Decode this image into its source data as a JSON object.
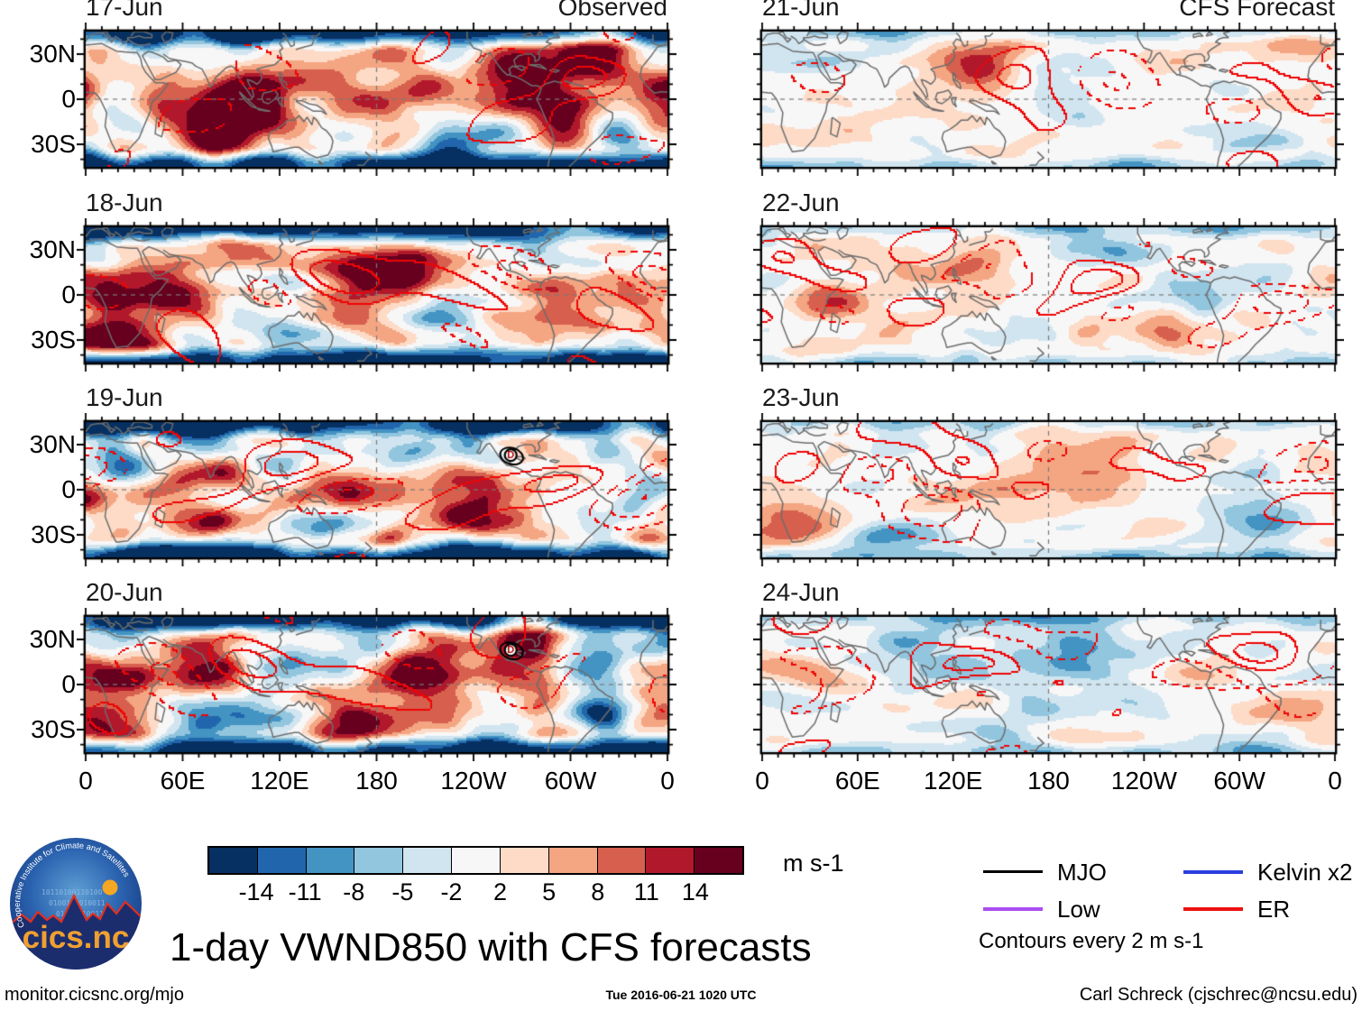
{
  "figure": {
    "panels": [
      {
        "date": "17-Jun",
        "corner_label": "Observed",
        "kind": "observed",
        "column": "left",
        "row": 0,
        "marker": ""
      },
      {
        "date": "18-Jun",
        "corner_label": "",
        "kind": "observed",
        "column": "left",
        "row": 1,
        "marker": ""
      },
      {
        "date": "19-Jun",
        "corner_label": "",
        "kind": "observed",
        "column": "left",
        "row": 2,
        "marker": "D"
      },
      {
        "date": "20-Jun",
        "corner_label": "",
        "kind": "observed",
        "column": "left",
        "row": 3,
        "marker": "D"
      },
      {
        "date": "21-Jun",
        "corner_label": "CFS Forecast",
        "kind": "forecast",
        "column": "right",
        "row": 0,
        "marker": ""
      },
      {
        "date": "22-Jun",
        "corner_label": "",
        "kind": "forecast",
        "column": "right",
        "row": 1,
        "marker": ""
      },
      {
        "date": "23-Jun",
        "corner_label": "",
        "kind": "forecast",
        "column": "right",
        "row": 2,
        "marker": ""
      },
      {
        "date": "24-Jun",
        "corner_label": "",
        "kind": "forecast",
        "column": "right",
        "row": 3,
        "marker": ""
      }
    ]
  },
  "axes": {
    "lat_ticks": [
      "30N",
      "0",
      "30S"
    ],
    "lon_ticks": [
      "0",
      "60E",
      "120E",
      "180",
      "120W",
      "60W",
      "0"
    ]
  },
  "colorbar": {
    "levels": [
      "-14",
      "-11",
      "-8",
      "-5",
      "-2",
      "2",
      "5",
      "8",
      "11",
      "14"
    ],
    "unit": "m s-1",
    "colors": [
      "#053061",
      "#2166ac",
      "#4393c3",
      "#92c5de",
      "#d1e5f0",
      "#f7f7f7",
      "#fddbc7",
      "#f4a582",
      "#d6604d",
      "#b2182b",
      "#67001f"
    ]
  },
  "legend": {
    "items": [
      {
        "label": "MJO",
        "color": "#000000",
        "col": 0,
        "row": 0,
        "thickness": 3
      },
      {
        "label": "Kelvin x2",
        "color": "#2b3fe0",
        "col": 1,
        "row": 0,
        "thickness": 4
      },
      {
        "label": "Low",
        "color": "#a94df0",
        "col": 0,
        "row": 1,
        "thickness": 4
      },
      {
        "label": "ER",
        "color": "#ee1111",
        "col": 1,
        "row": 1,
        "thickness": 4
      }
    ],
    "note": "Contours every 2 m s-1"
  },
  "footer": {
    "title": "1-day VWND850 with CFS forecasts",
    "url": "monitor.cicsnc.org/mjo",
    "timestamp": "Tue 2016-06-21 1020 UTC",
    "credit": "Carl Schreck (cjschrec@ncsu.edu)"
  },
  "logo": {
    "name": "cics.nc",
    "ring_text": "Cooperative Institute for Climate and Satellites"
  },
  "chart_data": {
    "type": "heatmap",
    "title": "1-day VWND850 with CFS forecasts",
    "subtitle_left_column": "Observed",
    "subtitle_right_column": "CFS Forecast",
    "panels": [
      {
        "date": "17-Jun",
        "source": "Observed"
      },
      {
        "date": "18-Jun",
        "source": "Observed"
      },
      {
        "date": "19-Jun",
        "source": "Observed",
        "marker": "D near 97W,23N"
      },
      {
        "date": "20-Jun",
        "source": "Observed",
        "marker": "D near 97W,23N"
      },
      {
        "date": "21-Jun",
        "source": "CFS Forecast"
      },
      {
        "date": "22-Jun",
        "source": "CFS Forecast"
      },
      {
        "date": "23-Jun",
        "source": "CFS Forecast"
      },
      {
        "date": "24-Jun",
        "source": "CFS Forecast"
      }
    ],
    "x": {
      "label": "longitude",
      "range_deg": [
        0,
        360
      ],
      "ticks": [
        "0",
        "60E",
        "120E",
        "180",
        "120W",
        "60W",
        "0"
      ]
    },
    "y": {
      "label": "latitude",
      "range_deg": [
        -45,
        45
      ],
      "ticks": [
        "30N",
        "0",
        "30S"
      ]
    },
    "fill_variable": "VWND850",
    "fill_units": "m s-1",
    "fill_levels": [
      -14,
      -11,
      -8,
      -5,
      -2,
      2,
      5,
      8,
      11,
      14
    ],
    "contour_interval_note": "Contours every 2 m s-1",
    "contour_series": [
      "MJO",
      "Low",
      "Kelvin x2",
      "ER"
    ],
    "legend_position": "bottom-right",
    "grid": "dashed equator and 180 meridian"
  }
}
